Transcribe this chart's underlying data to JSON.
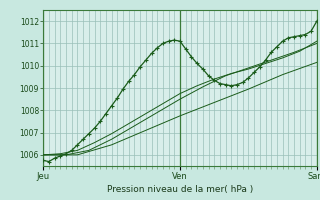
{
  "title": "",
  "xlabel": "Pression niveau de la mer( hPa )",
  "bg_color": "#c8e8e0",
  "plot_bg_color": "#d8eeea",
  "grid_color": "#9abfb8",
  "line_color": "#1a5c1a",
  "xmin": 0,
  "xmax": 48,
  "ymin": 1005.5,
  "ymax": 1012.5,
  "yticks": [
    1006,
    1007,
    1008,
    1009,
    1010,
    1011,
    1012
  ],
  "day_labels": [
    "Jeu",
    "Ven",
    "Sam"
  ],
  "day_positions": [
    0,
    24,
    48
  ],
  "line1_x": [
    0,
    1,
    2,
    3,
    4,
    5,
    6,
    7,
    8,
    9,
    10,
    11,
    12,
    13,
    14,
    15,
    16,
    17,
    18,
    19,
    20,
    21,
    22,
    23,
    24,
    25,
    26,
    27,
    28,
    29,
    30,
    31,
    32,
    33,
    34,
    35,
    36,
    37,
    38,
    39,
    40,
    41,
    42,
    43,
    44,
    45,
    46,
    47,
    48
  ],
  "line1_y": [
    1005.75,
    1005.7,
    1005.85,
    1005.95,
    1006.05,
    1006.2,
    1006.45,
    1006.7,
    1006.95,
    1007.2,
    1007.5,
    1007.85,
    1008.2,
    1008.55,
    1008.95,
    1009.3,
    1009.6,
    1009.95,
    1010.25,
    1010.55,
    1010.8,
    1011.0,
    1011.1,
    1011.15,
    1011.1,
    1010.75,
    1010.4,
    1010.1,
    1009.85,
    1009.55,
    1009.35,
    1009.2,
    1009.15,
    1009.1,
    1009.15,
    1009.25,
    1009.45,
    1009.7,
    1009.95,
    1010.25,
    1010.6,
    1010.85,
    1011.1,
    1011.25,
    1011.3,
    1011.35,
    1011.4,
    1011.55,
    1012.0
  ],
  "line2_x": [
    0,
    3,
    6,
    9,
    12,
    15,
    18,
    21,
    24,
    27,
    30,
    33,
    36,
    39,
    42,
    45,
    48
  ],
  "line2_y": [
    1006.0,
    1006.05,
    1006.2,
    1006.55,
    1006.95,
    1007.4,
    1007.85,
    1008.3,
    1008.75,
    1009.1,
    1009.4,
    1009.65,
    1009.85,
    1010.1,
    1010.35,
    1010.65,
    1011.1
  ],
  "line3_x": [
    0,
    4,
    8,
    12,
    16,
    20,
    24,
    28,
    32,
    36,
    40,
    44,
    48
  ],
  "line3_y": [
    1006.0,
    1006.0,
    1006.2,
    1006.7,
    1007.3,
    1007.9,
    1008.5,
    1009.05,
    1009.55,
    1009.9,
    1010.25,
    1010.6,
    1011.0
  ],
  "line4_x": [
    0,
    6,
    12,
    18,
    24,
    30,
    36,
    42,
    48
  ],
  "line4_y": [
    1006.0,
    1006.0,
    1006.45,
    1007.1,
    1007.75,
    1008.35,
    1008.95,
    1009.6,
    1010.15
  ]
}
